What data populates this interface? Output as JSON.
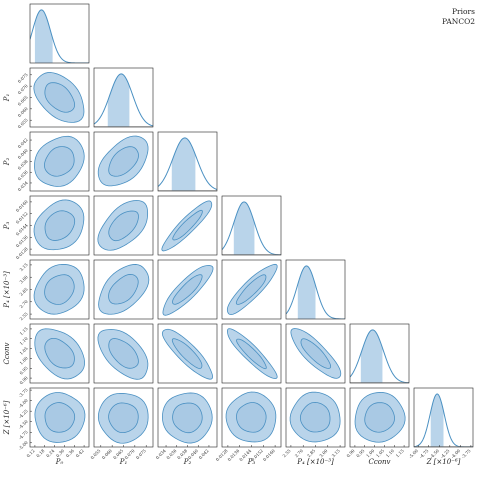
{
  "chart_data": {
    "type": "corner",
    "legend": {
      "placement": "top-right",
      "entries": [
        {
          "label": "Priors",
          "color": "#9a9a9a"
        },
        {
          "label": "PANCO2",
          "color": "#4a90c2"
        }
      ]
    },
    "colors": {
      "posterior_line": "#4a90c2",
      "posterior_fill": "#b9d4ea",
      "inner_fill": "#a9c9e4"
    },
    "parameters": [
      {
        "key": "P0",
        "label": "P₀",
        "ticks": [
          "0.12",
          "0.18",
          "0.24",
          "0.30",
          "0.36",
          "0.42"
        ],
        "range": [
          0.09,
          0.45
        ],
        "peak": 0.16,
        "interval68": [
          0.12,
          0.23
        ],
        "prior": false
      },
      {
        "key": "P1",
        "label": "P₁",
        "ticks": [
          "0.055",
          "0.060",
          "0.065",
          "0.070",
          "0.075"
        ],
        "range": [
          0.052,
          0.078
        ],
        "peak": 0.064,
        "interval68": [
          0.058,
          0.068
        ],
        "prior": true
      },
      {
        "key": "P2",
        "label": "P₂",
        "ticks": [
          "0.034",
          "0.036",
          "0.038",
          "0.040",
          "0.042"
        ],
        "range": [
          0.0325,
          0.0435
        ],
        "peak": 0.0375,
        "interval68": [
          0.035,
          0.0395
        ],
        "prior": true
      },
      {
        "key": "P3",
        "label": "P₃",
        "ticks": [
          "0.0128",
          "0.0136",
          "0.0144",
          "0.0152",
          "0.0160"
        ],
        "range": [
          0.0124,
          0.0164
        ],
        "peak": 0.0139,
        "interval68": [
          0.0132,
          0.0146
        ],
        "prior": true
      },
      {
        "key": "P4",
        "label": "P₄ [×10⁻³]",
        "ticks": [
          "2.55",
          "2.70",
          "2.85",
          "3.00",
          "3.15"
        ],
        "range": [
          2.49,
          3.21
        ],
        "peak": 2.74,
        "interval68": [
          2.63,
          2.86
        ],
        "prior": false
      },
      {
        "key": "Cconv",
        "label": "Cconv",
        "ticks": [
          "0.90",
          "0.95",
          "1.00",
          "1.05",
          "1.10",
          "1.15"
        ],
        "range": [
          0.875,
          1.175
        ],
        "peak": 0.99,
        "interval68": [
          0.93,
          1.04
        ],
        "prior": true
      },
      {
        "key": "Z",
        "label": "Z [×10⁻⁶]",
        "ticks": [
          "-5.00",
          "-4.75",
          "-4.50",
          "-4.25",
          "-4.00",
          "-3.75"
        ],
        "range": [
          -5.1,
          -3.7
        ],
        "peak": -4.55,
        "interval68": [
          -4.72,
          -4.38
        ],
        "prior": true
      }
    ]
  }
}
